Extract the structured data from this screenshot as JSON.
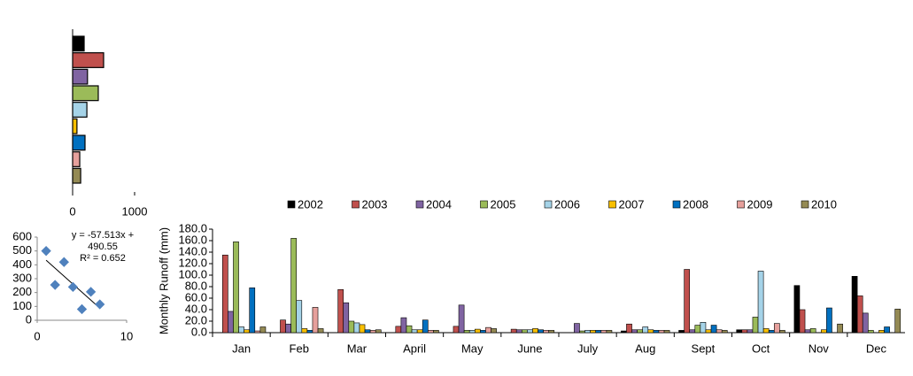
{
  "chart_data": [
    {
      "type": "barh",
      "categories": [
        null,
        null,
        null,
        null,
        null,
        null,
        null,
        null,
        null
      ],
      "values": [
        186,
        500,
        240,
        414,
        230,
        70,
        200,
        115,
        130
      ],
      "colors": [
        "#000000",
        "#c0504d",
        "#8064a2",
        "#9bbb59",
        "#a5d3e8",
        "#f9c000",
        "#0070c0",
        "#e6a09c",
        "#948a54"
      ],
      "xlim": [
        0,
        1000
      ],
      "xticks": [
        0,
        1000
      ]
    },
    {
      "type": "scatter",
      "x": [
        1,
        2,
        3,
        4,
        5,
        6,
        7
      ],
      "values": [
        500,
        255,
        420,
        240,
        80,
        205,
        115
      ],
      "color": "#4f81bd",
      "xlim": [
        0,
        10
      ],
      "xticks": [
        0,
        10
      ],
      "ylim": [
        0,
        600
      ],
      "yticks": [
        0,
        100,
        200,
        300,
        400,
        500,
        600
      ],
      "trendline": {
        "slope": -57.513,
        "intercept": 490.55
      },
      "annotations": [
        "y = -57.513x + 490.55",
        "R² = 0.652"
      ]
    },
    {
      "type": "bar",
      "ylabel": "Monthly  Runoff (mm)",
      "categories": [
        "Jan",
        "Feb",
        "Mar",
        "April",
        "May",
        "June",
        "July",
        "Aug",
        "Sept",
        "Oct",
        "Nov",
        "Dec"
      ],
      "ylim": [
        0,
        180
      ],
      "yticks": [
        {
          "value": 0,
          "label": "0.0"
        },
        {
          "value": 20,
          "label": "20.0"
        },
        {
          "value": 40,
          "label": "40.0"
        },
        {
          "value": 60,
          "label": "60.0"
        },
        {
          "value": 80,
          "label": "80.0"
        },
        {
          "value": 100,
          "label": "100.0"
        },
        {
          "value": 120,
          "label": "120.0"
        },
        {
          "value": 140,
          "label": "140.0"
        },
        {
          "value": 160,
          "label": "160.0"
        },
        {
          "value": 180,
          "label": "180.0"
        }
      ],
      "series": [
        {
          "name": "2002",
          "color": "#000000",
          "values": [
            0,
            0,
            0,
            0,
            0,
            0,
            0,
            3,
            4,
            5,
            82,
            98
          ]
        },
        {
          "name": "2003",
          "color": "#c0504d",
          "values": [
            135,
            22,
            75,
            11,
            11,
            6,
            0,
            15,
            110,
            5,
            40,
            64
          ]
        },
        {
          "name": "2004",
          "color": "#8064a2",
          "values": [
            37,
            15,
            52,
            26,
            48,
            5,
            16,
            5,
            5,
            5,
            5,
            34
          ]
        },
        {
          "name": "2005",
          "color": "#9bbb59",
          "values": [
            158,
            164,
            20,
            12,
            4,
            5,
            3,
            5,
            13,
            27,
            7,
            4
          ]
        },
        {
          "name": "2006",
          "color": "#a5d3e8",
          "values": [
            10,
            56,
            17,
            5,
            4,
            5,
            4,
            10,
            18,
            107,
            0,
            0
          ]
        },
        {
          "name": "2007",
          "color": "#f9c000",
          "values": [
            5,
            7,
            14,
            5,
            6,
            7,
            4,
            5,
            5,
            7,
            5,
            4
          ]
        },
        {
          "name": "2008",
          "color": "#0070c0",
          "values": [
            78,
            4,
            5,
            22,
            4,
            5,
            4,
            4,
            13,
            4,
            43,
            10
          ]
        },
        {
          "name": "2009",
          "color": "#e6a09c",
          "values": [
            3,
            44,
            4,
            4,
            9,
            4,
            4,
            4,
            5,
            16,
            0,
            0
          ]
        },
        {
          "name": "2010",
          "color": "#948a54",
          "values": [
            10,
            7,
            5,
            4,
            7,
            4,
            4,
            4,
            4,
            4,
            15,
            41
          ]
        }
      ]
    }
  ]
}
